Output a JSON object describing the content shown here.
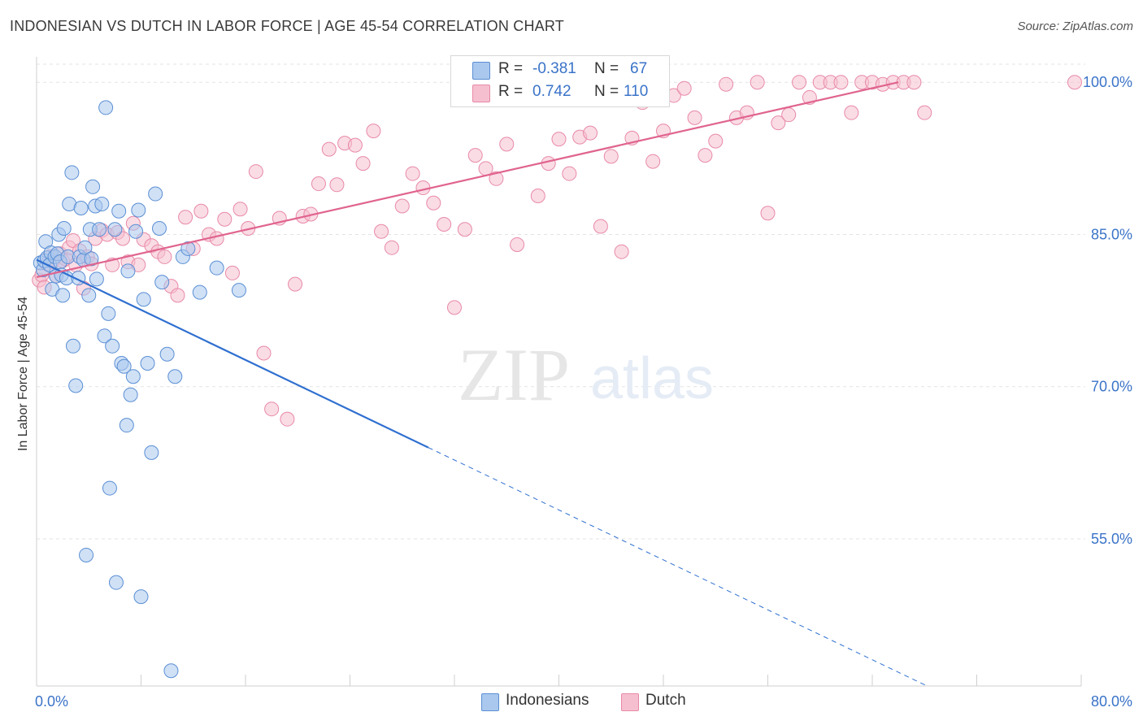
{
  "header": {
    "title": "INDONESIAN VS DUTCH IN LABOR FORCE | AGE 45-54 CORRELATION CHART",
    "source": "Source: ZipAtlas.com"
  },
  "watermark": {
    "zip": "ZIP",
    "atlas": "atlas"
  },
  "legend_stats": {
    "rows": [
      {
        "r_label": "R =",
        "r_value": "-0.381",
        "n_label": "N =",
        "n_value": "67"
      },
      {
        "r_label": "R =",
        "r_value": "0.742",
        "n_label": "N =",
        "n_value": "110"
      }
    ]
  },
  "colors": {
    "indonesians_fill": "#aac8ee",
    "indonesians_stroke": "#5b8fd4",
    "indonesians_line": "#2f6fd0",
    "dutch_fill": "#f6bfd0",
    "dutch_stroke": "#e88aa8",
    "dutch_line": "#e0648e",
    "value_text": "#3a73c8",
    "grid": "#e3e3e3"
  },
  "chart_data": {
    "type": "scatter",
    "title": "INDONESIAN VS DUTCH IN LABOR FORCE | AGE 45-54 CORRELATION CHART",
    "xlabel": "",
    "ylabel": "In Labor Force | Age 45-54",
    "xlim": [
      0,
      80
    ],
    "ylim": [
      40.5,
      102.5
    ],
    "x_tick_labels": [
      "0.0%",
      "80.0%"
    ],
    "y_tick_labels": [
      "55.0%",
      "70.0%",
      "85.0%",
      "100.0%"
    ],
    "y_ticks": [
      55,
      70,
      85,
      100
    ],
    "grid": true,
    "legend_position": "bottom",
    "series": [
      {
        "name": "Indonesians",
        "x": [
          0.3,
          0.5,
          0.6,
          0.7,
          0.8,
          1.0,
          1.1,
          1.2,
          1.4,
          1.5,
          1.6,
          1.7,
          1.8,
          1.9,
          2.0,
          2.1,
          2.3,
          2.4,
          2.5,
          2.7,
          2.8,
          3.0,
          3.2,
          3.3,
          3.4,
          3.6,
          3.7,
          3.8,
          4.0,
          4.1,
          4.2,
          4.3,
          4.5,
          4.6,
          4.8,
          5.0,
          5.2,
          5.3,
          5.5,
          5.6,
          5.8,
          6.0,
          6.1,
          6.3,
          6.5,
          6.7,
          6.9,
          7.0,
          7.2,
          7.4,
          7.6,
          7.8,
          8.0,
          8.2,
          8.5,
          8.8,
          9.1,
          9.4,
          9.6,
          10.0,
          10.3,
          10.6,
          11.2,
          11.6,
          12.5,
          13.8,
          15.5
        ],
        "y": [
          82.2,
          81.5,
          82.4,
          84.3,
          82.7,
          82.0,
          83.2,
          79.6,
          82.8,
          80.9,
          83.1,
          85.0,
          82.3,
          81.0,
          79.0,
          85.6,
          80.7,
          82.8,
          88.0,
          91.1,
          74.0,
          70.1,
          80.7,
          82.8,
          87.6,
          82.5,
          83.7,
          53.4,
          79.0,
          85.5,
          82.6,
          89.7,
          87.8,
          80.6,
          85.5,
          88.0,
          75.0,
          97.5,
          77.2,
          60.0,
          74.0,
          85.5,
          50.7,
          87.3,
          72.3,
          72.0,
          66.2,
          81.4,
          69.2,
          71.0,
          85.3,
          87.4,
          49.3,
          78.6,
          72.3,
          63.5,
          89.0,
          85.6,
          80.3,
          73.2,
          42.0,
          71.0,
          82.8,
          83.6,
          79.3,
          81.7,
          79.5
        ],
        "regression": {
          "x": [
            0,
            30
          ],
          "y": [
            82.5,
            64.0
          ],
          "extended_to": [
            68.2,
            40.5
          ]
        }
      },
      {
        "name": "Dutch",
        "x": [
          0.2,
          0.4,
          0.6,
          0.8,
          1.0,
          1.2,
          1.5,
          1.8,
          2.0,
          2.2,
          2.5,
          2.8,
          3.0,
          3.3,
          3.6,
          3.9,
          4.2,
          4.5,
          5.0,
          5.4,
          5.8,
          6.2,
          6.6,
          7.0,
          7.4,
          7.8,
          8.2,
          8.8,
          9.3,
          9.8,
          10.3,
          10.8,
          11.4,
          12.0,
          12.6,
          13.2,
          13.8,
          14.4,
          15.0,
          15.6,
          16.2,
          16.8,
          17.4,
          18.0,
          18.6,
          19.2,
          19.8,
          20.4,
          21.0,
          21.6,
          22.4,
          23.0,
          23.6,
          24.4,
          25.0,
          25.8,
          26.4,
          27.2,
          28.0,
          28.8,
          29.6,
          30.4,
          31.2,
          32.0,
          32.8,
          33.6,
          34.4,
          35.2,
          36.0,
          36.8,
          37.6,
          38.4,
          39.2,
          40.0,
          40.8,
          41.6,
          42.4,
          43.2,
          44.0,
          44.8,
          45.6,
          46.4,
          47.2,
          48.0,
          48.8,
          49.6,
          50.4,
          51.2,
          52.0,
          52.8,
          53.6,
          54.4,
          55.2,
          56.0,
          56.8,
          57.6,
          58.4,
          59.2,
          60.0,
          60.8,
          61.6,
          62.4,
          63.2,
          64.0,
          64.8,
          65.6,
          66.4,
          67.2,
          68.0,
          79.5
        ],
        "y": [
          80.5,
          81.0,
          79.8,
          82.1,
          82.8,
          82.3,
          80.9,
          83.1,
          82.4,
          82.6,
          83.7,
          84.4,
          82.0,
          83.4,
          79.7,
          82.8,
          82.1,
          84.6,
          85.4,
          85.0,
          82.0,
          85.2,
          84.6,
          82.3,
          86.1,
          82.0,
          84.5,
          83.9,
          83.3,
          82.8,
          79.9,
          79.0,
          86.7,
          83.6,
          87.3,
          85.0,
          84.6,
          86.5,
          81.2,
          87.5,
          85.6,
          91.2,
          73.3,
          67.8,
          86.6,
          66.8,
          80.1,
          86.8,
          87.0,
          90.0,
          93.4,
          89.9,
          94.0,
          93.8,
          92.0,
          95.2,
          85.3,
          83.7,
          87.8,
          91.0,
          89.6,
          88.1,
          86.0,
          77.8,
          85.5,
          92.8,
          91.5,
          90.5,
          93.9,
          84.0,
          99.8,
          88.8,
          92.0,
          94.4,
          91.0,
          94.6,
          95.0,
          85.8,
          92.7,
          83.3,
          94.5,
          98.0,
          92.2,
          95.2,
          98.7,
          99.4,
          96.5,
          92.8,
          94.2,
          99.8,
          96.5,
          97.0,
          100.0,
          87.1,
          96.0,
          96.8,
          100.0,
          98.5,
          100.0,
          100.0,
          100.0,
          97.0,
          100.0,
          100.0,
          99.8,
          100.0,
          100.0,
          100.0,
          97.0,
          100.0
        ],
        "regression": {
          "x": [
            0,
            66.0
          ],
          "y": [
            80.8,
            100.0
          ]
        }
      }
    ]
  }
}
